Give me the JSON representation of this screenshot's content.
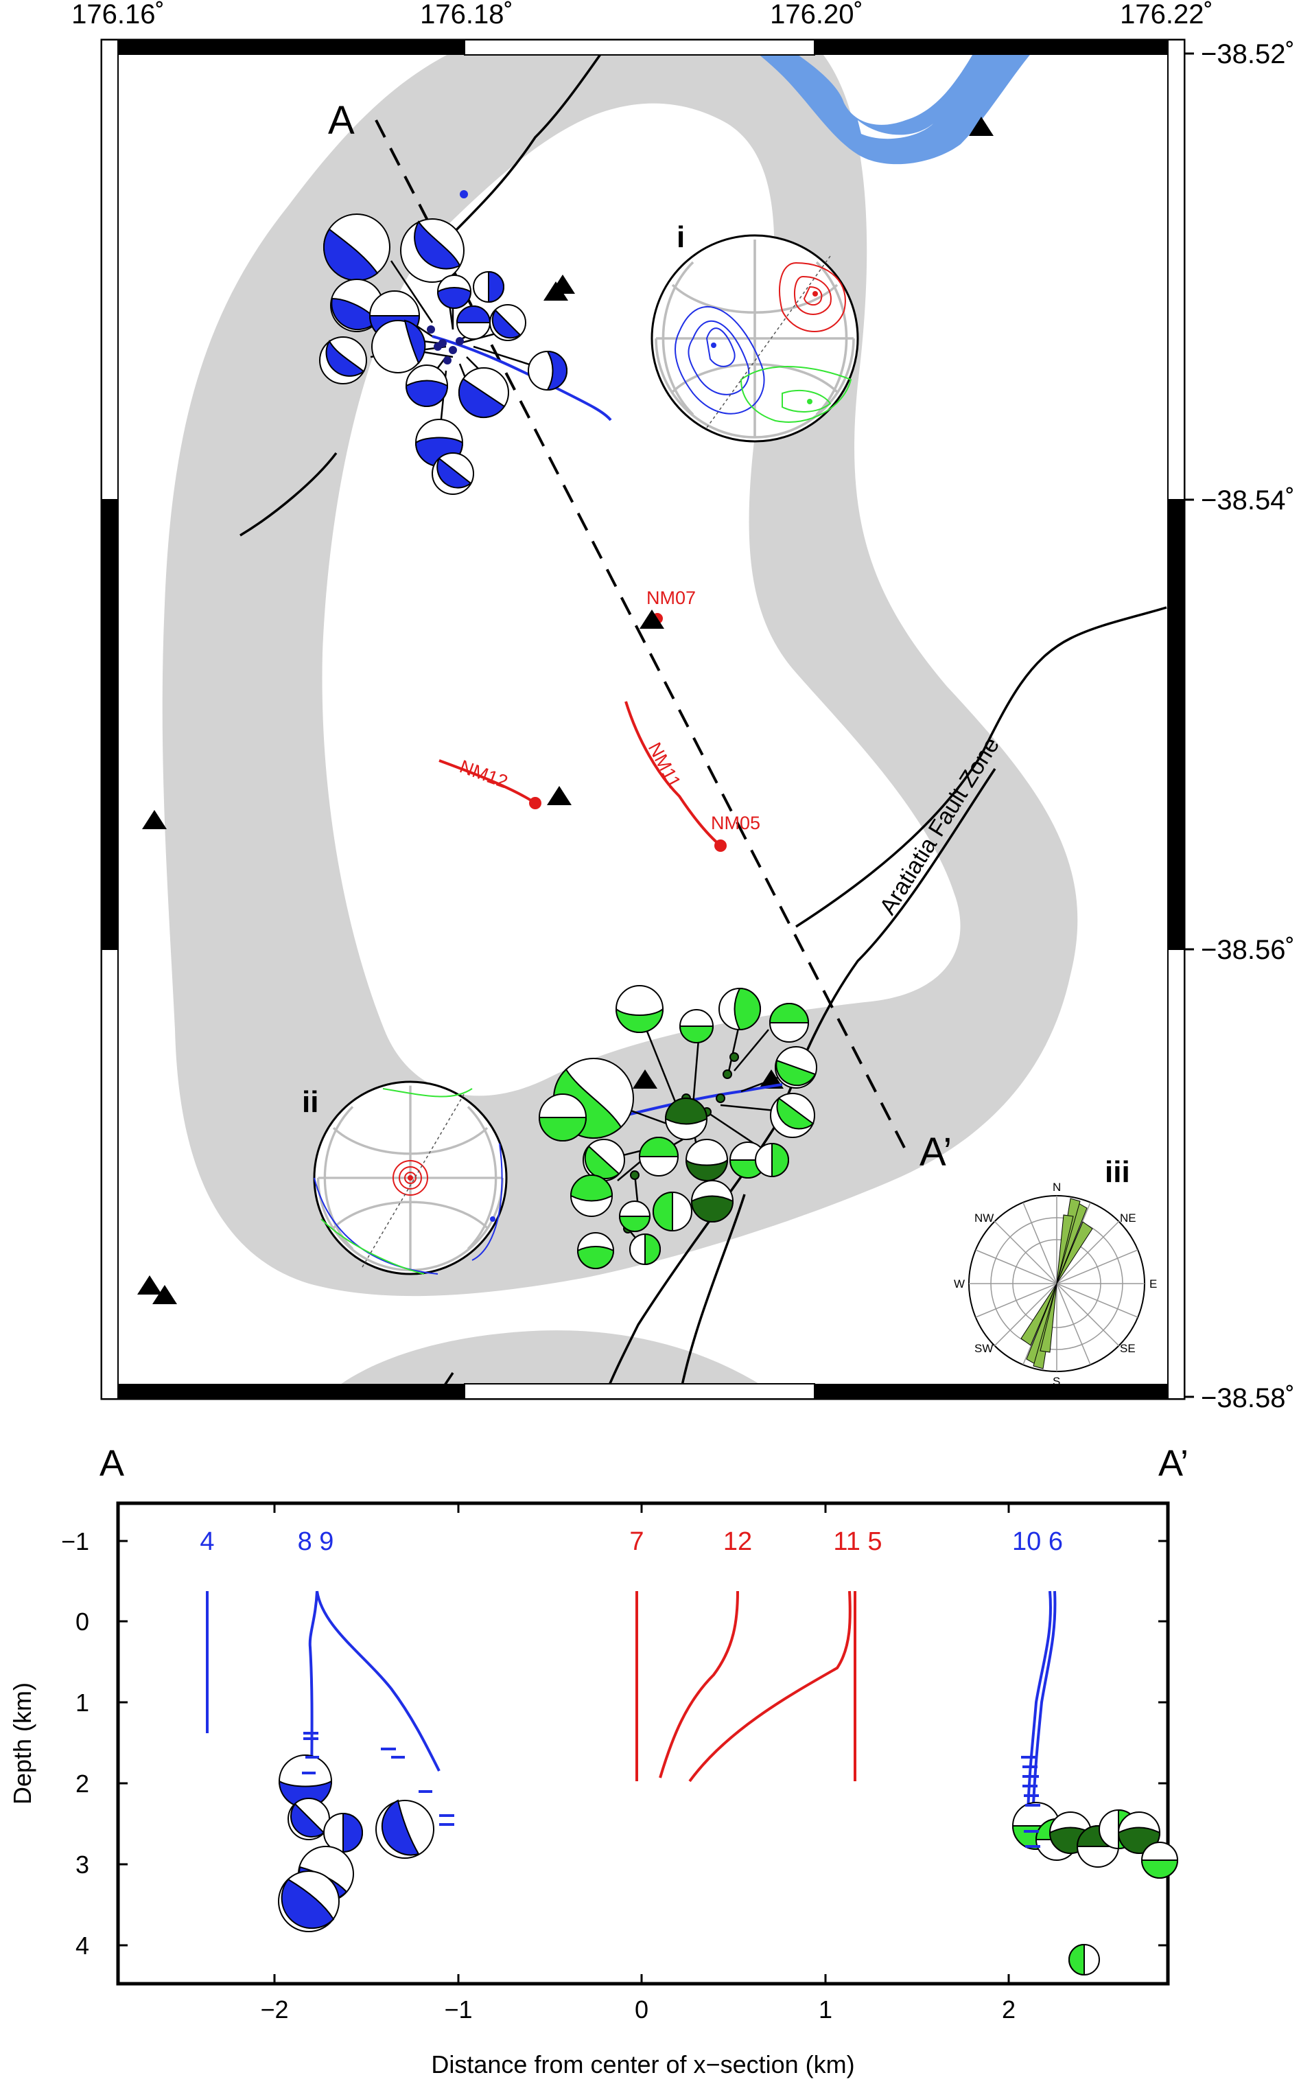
{
  "map": {
    "lon_ticks": [
      "176.16˚",
      "176.18˚",
      "176.20˚",
      "176.22˚"
    ],
    "lat_ticks": [
      "−38.52˚",
      "−38.54˚",
      "−38.56˚",
      "−38.58˚"
    ],
    "profile_start": "A",
    "profile_end": "A’",
    "fault_label": "Aratiatia Fault Zone",
    "wells": [
      "NM07",
      "NM11",
      "NM12",
      "NM05"
    ],
    "inset_labels": [
      "i",
      "ii",
      "iii"
    ],
    "rose_directions": [
      "N",
      "NE",
      "E",
      "SE",
      "S",
      "SW",
      "W",
      "NW"
    ],
    "colors": {
      "north_cluster": "#1f2fe6",
      "south_cluster": "#33e533",
      "south_cluster_dark": "#1e6b14",
      "wells": "#e11b1b",
      "river": "#6a9de6",
      "reservoir_zone": "#d3d3d3",
      "rose_petals": "#8cbf4a"
    }
  },
  "section": {
    "left_label": "A",
    "right_label": "A’",
    "xlabel": "Distance from center of x−section (km)",
    "ylabel": "Depth (km)",
    "x_ticks": [
      "−2",
      "−1",
      "0",
      "1",
      "2"
    ],
    "y_ticks": [
      "−1",
      "0",
      "1",
      "2",
      "3",
      "4"
    ],
    "well_labels": [
      {
        "text": "4",
        "color": "#1f2fe6"
      },
      {
        "text": "8 9",
        "color": "#1f2fe6"
      },
      {
        "text": "7",
        "color": "#e11b1b"
      },
      {
        "text": "12",
        "color": "#e11b1b"
      },
      {
        "text": "11 5",
        "color": "#e11b1b"
      },
      {
        "text": "10 6",
        "color": "#1f2fe6"
      }
    ]
  }
}
